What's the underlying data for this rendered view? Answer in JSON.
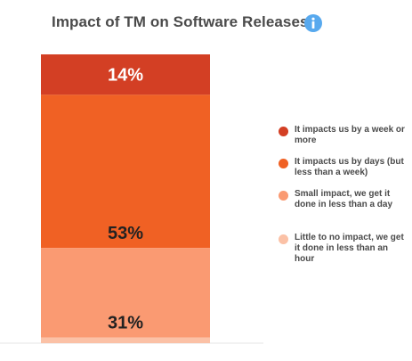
{
  "chart_data": {
    "type": "bar",
    "stacked": true,
    "title": "Impact of TM on Software Releases",
    "categories": [
      ""
    ],
    "series": [
      {
        "name": "It impacts us by a week or more",
        "values": [
          14
        ],
        "label": "14%",
        "color": "#d33f24",
        "label_color": "#ffffff"
      },
      {
        "name": "It impacts us by days (but less than a week)",
        "values": [
          53
        ],
        "label": "53%",
        "color": "#f06124",
        "label_color": "#222222"
      },
      {
        "name": "Small impact, we get it done in less than a day",
        "values": [
          31
        ],
        "label": "31%",
        "color": "#fa9a72",
        "label_color": "#222222"
      },
      {
        "name": "Little to no impact, we get it done in less than an hour",
        "values": [
          2
        ],
        "label": "",
        "color": "#fbc1a6",
        "label_color": "#222222"
      }
    ],
    "ylim": [
      0,
      100
    ],
    "legend": "right"
  },
  "icons": {
    "info": "info-icon"
  },
  "colors": {
    "info_icon": "#58a9ee",
    "title_text": "#4a4a4a",
    "baseline": "#e4e4e4"
  }
}
